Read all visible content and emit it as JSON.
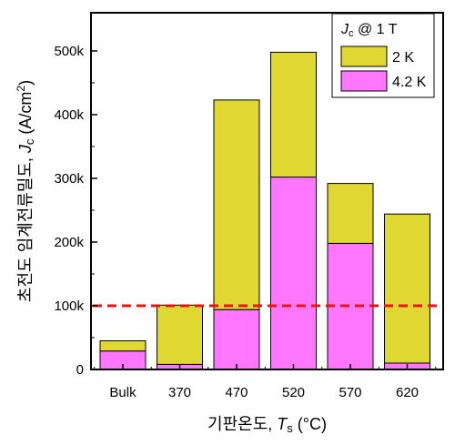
{
  "chart_data": {
    "type": "bar",
    "stacked": true,
    "categories": [
      "Bulk",
      "370",
      "470",
      "520",
      "570",
      "620"
    ],
    "series": [
      {
        "name": "4.2 K",
        "color": "#ff77ff",
        "values": [
          29000,
          8000,
          94000,
          302000,
          198000,
          10000
        ]
      },
      {
        "name": "2 K",
        "color": "#e0d832",
        "values": [
          16000,
          93000,
          329000,
          196000,
          94000,
          234000
        ]
      }
    ],
    "totals_2K": [
      45000,
      101000,
      423000,
      498000,
      292000,
      244000
    ],
    "ylim": [
      0,
      560000
    ],
    "yticks": [
      0,
      100000,
      200000,
      300000,
      400000,
      500000
    ],
    "ytick_labels": [
      "0",
      "100k",
      "200k",
      "300k",
      "400k",
      "500k"
    ],
    "xlabel": {
      "korean": "기판온도, ",
      "symbol": "T",
      "subscript": "s",
      "unit": " (°C)"
    },
    "ylabel": {
      "korean": "초전도 임계전류밀도, ",
      "symbol": "J",
      "subscript": "c",
      "unit": " (A/cm",
      "superscript": "2",
      "unit_end": ")"
    },
    "reference_line": {
      "value": 100000,
      "color": "#ee1111",
      "style": "dashed"
    },
    "legend": {
      "position": "top-right",
      "title": {
        "symbol": "J",
        "subscript": "c",
        "text": " @ 1 T"
      },
      "entries": [
        "2 K",
        "4.2 K"
      ]
    },
    "grid": false
  }
}
